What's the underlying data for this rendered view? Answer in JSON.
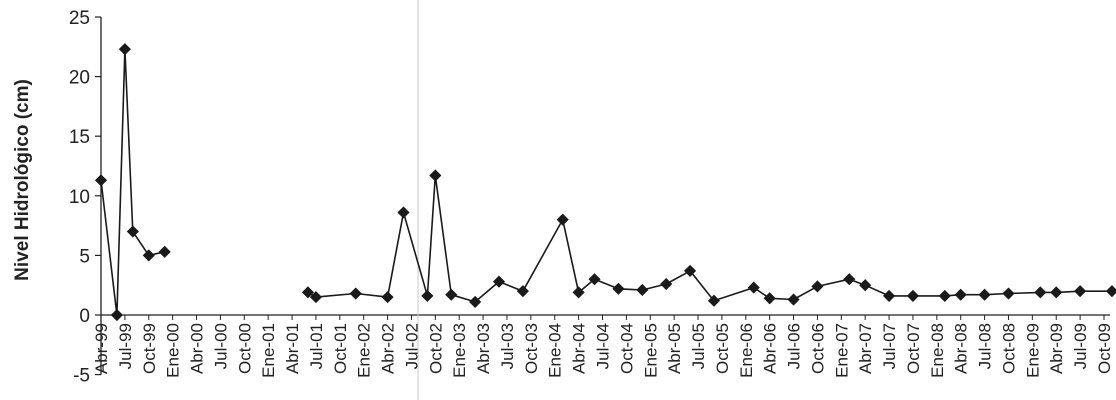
{
  "chart_data": {
    "type": "line",
    "title": "",
    "xlabel": "",
    "ylabel": "Nivel Hidrológico (cm)",
    "ylim": [
      -5,
      25
    ],
    "yticks": [
      -5,
      0,
      5,
      10,
      15,
      20,
      25
    ],
    "grid": false,
    "categories": [
      "Abr-99",
      "Jul-99",
      "Oct-99",
      "Ene-00",
      "Abr-00",
      "Jul-00",
      "Oct-00",
      "Ene-01",
      "Abr-01",
      "Jul-01",
      "Oct-01",
      "Ene-02",
      "Abr-02",
      "Jul-02",
      "Oct-02",
      "Ene-03",
      "Abr-03",
      "Jul-03",
      "Oct-03",
      "Ene-04",
      "Abr-04",
      "Jul-04",
      "Oct-04",
      "Ene-05",
      "Abr-05",
      "Jul-05",
      "Oct-05",
      "Ene-06",
      "Abr-06",
      "Jul-06",
      "Oct-06",
      "Ene-07",
      "Abr-07",
      "Jul-07",
      "Oct-07",
      "Ene-08",
      "Abr-08",
      "Jul-08",
      "Oct-08",
      "Ene-09",
      "Abr-09",
      "Jul-09",
      "Oct-09"
    ],
    "series": [
      {
        "color": "#1a1a1a",
        "points": [
          {
            "x": "Abr-99",
            "y": 11.3
          },
          {
            "x": "Jun-99",
            "y": 0.0
          },
          {
            "x": "Jul-99",
            "y": 22.3
          },
          {
            "x": "Ago-99",
            "y": 7.0
          },
          {
            "x": "Oct-99",
            "y": 5.0
          },
          {
            "x": "Dic-99",
            "y": 5.3
          },
          null,
          {
            "x": "Jun-01",
            "y": 1.9
          },
          {
            "x": "Jul-01",
            "y": 1.5
          },
          {
            "x": "Dic-01",
            "y": 1.8
          },
          {
            "x": "Abr-02",
            "y": 1.5
          },
          {
            "x": "Jun-02",
            "y": 8.6
          },
          {
            "x": "Sep-02",
            "y": 1.6
          },
          {
            "x": "Oct-02",
            "y": 11.7
          },
          {
            "x": "Dic-02",
            "y": 1.7
          },
          {
            "x": "Mar-03",
            "y": 1.1
          },
          {
            "x": "Jun-03",
            "y": 2.8
          },
          {
            "x": "Sep-03",
            "y": 2.0
          },
          {
            "x": "Feb-04",
            "y": 8.0
          },
          {
            "x": "Abr-04",
            "y": 1.9
          },
          {
            "x": "Jun-04",
            "y": 3.0
          },
          {
            "x": "Sep-04",
            "y": 2.2
          },
          {
            "x": "Dic-04",
            "y": 2.1
          },
          {
            "x": "Mar-05",
            "y": 2.6
          },
          {
            "x": "Jun-05",
            "y": 3.7
          },
          {
            "x": "Sep-05",
            "y": 1.2
          },
          {
            "x": "Feb-06",
            "y": 2.3
          },
          {
            "x": "Abr-06",
            "y": 1.4
          },
          {
            "x": "Jul-06",
            "y": 1.3
          },
          {
            "x": "Oct-06",
            "y": 2.4
          },
          {
            "x": "Feb-07",
            "y": 3.0
          },
          {
            "x": "Abr-07",
            "y": 2.5
          },
          {
            "x": "Jul-07",
            "y": 1.6
          },
          {
            "x": "Oct-07",
            "y": 1.6
          },
          {
            "x": "Feb-08",
            "y": 1.6
          },
          {
            "x": "Abr-08",
            "y": 1.7
          },
          {
            "x": "Jul-08",
            "y": 1.7
          },
          {
            "x": "Oct-08",
            "y": 1.8
          },
          {
            "x": "Feb-09",
            "y": 1.9
          },
          {
            "x": "Abr-09",
            "y": 1.9
          },
          {
            "x": "Jul-09",
            "y": 2.0
          },
          {
            "x": "Nov-09",
            "y": 2.0
          }
        ]
      }
    ]
  }
}
